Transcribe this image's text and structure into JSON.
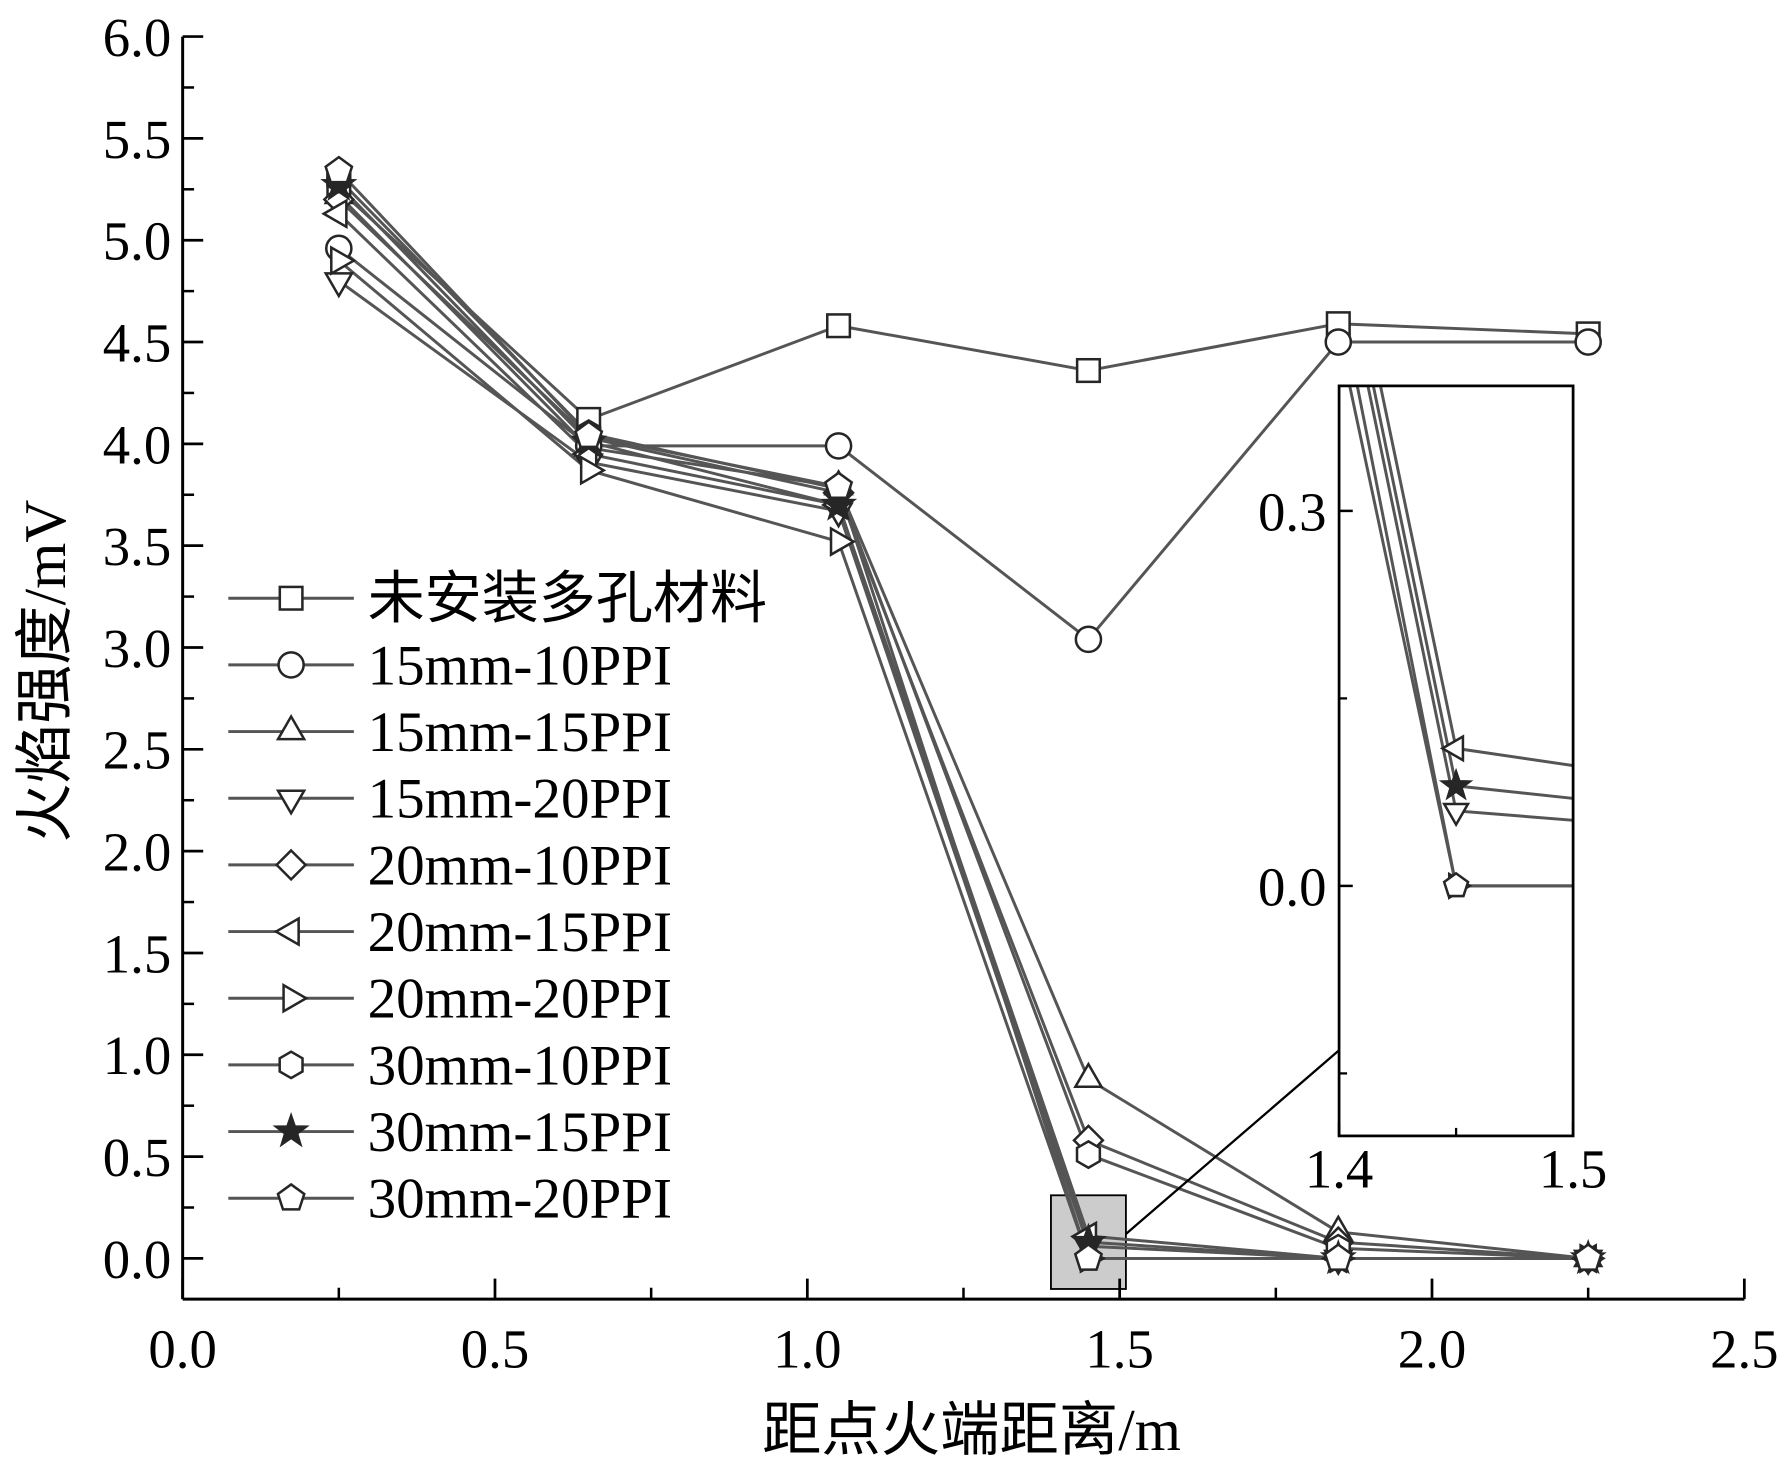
{
  "chart_data": {
    "type": "line",
    "xlabel": "距点火端距离/m",
    "ylabel": "火焰强度/mV",
    "xlim": [
      0.0,
      2.5
    ],
    "ylim": [
      -0.2,
      6.0
    ],
    "xticks": [
      "0.0",
      "0.5",
      "1.0",
      "1.5",
      "2.0",
      "2.5"
    ],
    "yticks": [
      "0.0",
      "0.5",
      "1.0",
      "1.5",
      "2.0",
      "2.5",
      "3.0",
      "3.5",
      "4.0",
      "4.5",
      "5.0",
      "5.5",
      "6.0"
    ],
    "grid": false,
    "legend_position": "left",
    "x": [
      0.25,
      0.65,
      1.05,
      1.45,
      1.85,
      2.25
    ],
    "series": [
      {
        "name": "未安装多孔材料",
        "marker": "square",
        "values": [
          5.25,
          4.12,
          4.58,
          4.36,
          4.59,
          4.54
        ]
      },
      {
        "name": "15mm-10PPI",
        "marker": "circle",
        "values": [
          4.96,
          3.99,
          3.99,
          3.04,
          4.5,
          4.5
        ]
      },
      {
        "name": "15mm-15PPI",
        "marker": "triangle-up",
        "values": [
          5.22,
          3.98,
          3.79,
          0.88,
          0.13,
          0.0
        ]
      },
      {
        "name": "15mm-20PPI",
        "marker": "triangle-down",
        "values": [
          4.8,
          3.91,
          3.67,
          0.06,
          0.0,
          0.0
        ]
      },
      {
        "name": "20mm-10PPI",
        "marker": "diamond",
        "values": [
          5.2,
          4.03,
          3.76,
          0.58,
          0.08,
          0.0
        ]
      },
      {
        "name": "20mm-15PPI",
        "marker": "triangle-left",
        "values": [
          5.13,
          3.95,
          3.7,
          0.11,
          0.0,
          0.0
        ]
      },
      {
        "name": "20mm-20PPI",
        "marker": "triangle-right",
        "values": [
          4.9,
          3.87,
          3.52,
          0.0,
          0.0,
          0.0
        ]
      },
      {
        "name": "30mm-10PPI",
        "marker": "hexagon",
        "values": [
          5.3,
          4.05,
          3.78,
          0.51,
          0.05,
          0.0
        ]
      },
      {
        "name": "30mm-15PPI",
        "marker": "star",
        "values": [
          5.27,
          4.01,
          3.7,
          0.08,
          0.0,
          0.0
        ]
      },
      {
        "name": "30mm-20PPI",
        "marker": "pentagon",
        "values": [
          5.34,
          4.04,
          3.79,
          0.0,
          0.0,
          0.0
        ]
      }
    ],
    "inset": {
      "xlim": [
        1.4,
        1.5
      ],
      "ylim": [
        -0.2,
        0.4
      ],
      "xticks": [
        "1.4",
        "1.5"
      ],
      "yticks": [
        "0.0",
        "0.3"
      ]
    }
  },
  "colors": {
    "line": "#555555",
    "marker_stroke": "#262626",
    "marker_fill": "#ffffff",
    "star_fill": "#262626",
    "zoom_box": "#cccccc",
    "axis": "#000000"
  }
}
